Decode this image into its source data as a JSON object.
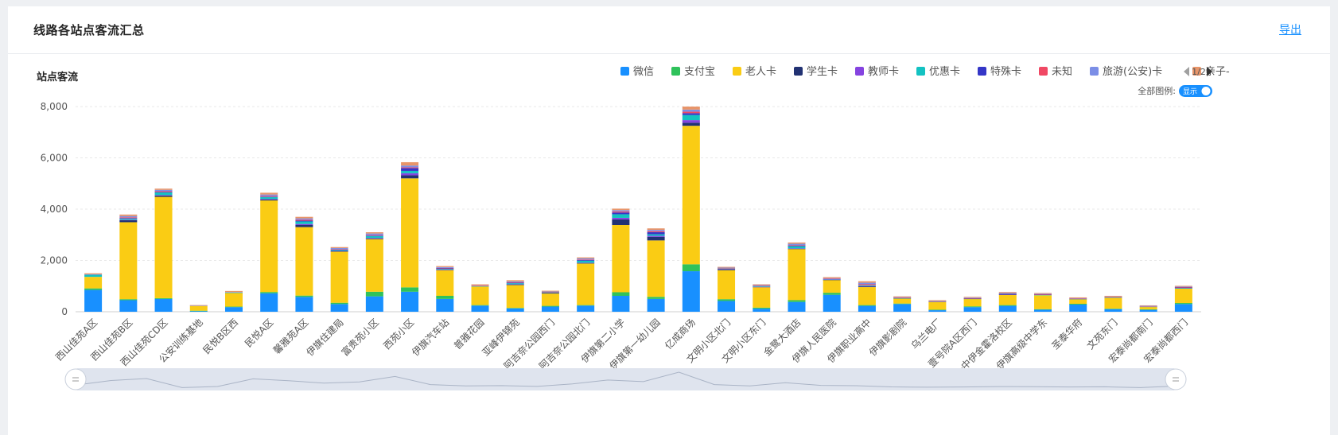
{
  "page": {
    "title": "线路各站点客流汇总",
    "export_label": "导出",
    "chart_title": "站点客流"
  },
  "legend": {
    "items": [
      {
        "name": "微信",
        "color": "#1890ff"
      },
      {
        "name": "支付宝",
        "color": "#2fc25b"
      },
      {
        "name": "老人卡",
        "color": "#facc14"
      },
      {
        "name": "学生卡",
        "color": "#223273"
      },
      {
        "name": "教师卡",
        "color": "#8543e0"
      },
      {
        "name": "优惠卡",
        "color": "#13c2c2"
      },
      {
        "name": "特殊卡",
        "color": "#3436c7"
      },
      {
        "name": "未知",
        "color": "#f04864"
      },
      {
        "name": "旅游(公安)卡",
        "color": "#7b8ee6"
      },
      {
        "name": "亲子-",
        "color": "#e8956a"
      }
    ],
    "page_indicator": "1/2",
    "toggle_label": "全部图例:",
    "toggle_value": "显示"
  },
  "chart_data": {
    "type": "bar",
    "stacked": true,
    "ylim": [
      0,
      8000
    ],
    "yticks": [
      "0",
      "2,000",
      "4,000",
      "6,000",
      "8,000"
    ],
    "grid": true,
    "legend_position": "top-right",
    "categories": [
      "西山佳苑A区",
      "西山佳苑B区",
      "西山佳苑CD区",
      "公安训练基地",
      "民悦B区西",
      "民悦A区",
      "馨雅苑A区",
      "伊旗住建局",
      "富贵苑小区",
      "西苑小区",
      "伊旗汽车站",
      "普雅花园",
      "亚峰伊锦苑",
      "阿吉奈公园西门",
      "阿吉奈公园北门",
      "伊旗第二小学",
      "伊旗第一幼儿园",
      "亿成商场",
      "文明小区北门",
      "文明小区东门",
      "金鹭大酒店",
      "伊旗人民医院",
      "伊旗职业高中",
      "伊旗影剧院",
      "乌兰电厂",
      "壹号院A区西门",
      "市一中伊金霍洛校区",
      "伊旗高级中学东",
      "圣泰华府",
      "文苑东门",
      "宏泰尚都南门",
      "宏泰尚都西门"
    ],
    "series": [
      {
        "name": "微信",
        "values": [
          850,
          450,
          500,
          30,
          180,
          720,
          580,
          300,
          600,
          780,
          500,
          240,
          130,
          200,
          240,
          620,
          500,
          1580,
          420,
          120,
          380,
          660,
          230,
          300,
          60,
          180,
          230,
          80,
          280,
          100,
          80,
          300
        ]
      },
      {
        "name": "支付宝",
        "values": [
          60,
          40,
          30,
          10,
          20,
          50,
          50,
          50,
          180,
          170,
          120,
          20,
          20,
          30,
          20,
          140,
          80,
          270,
          70,
          40,
          70,
          80,
          30,
          20,
          20,
          30,
          30,
          20,
          30,
          20,
          10,
          40
        ]
      },
      {
        "name": "老人卡",
        "values": [
          450,
          3000,
          3950,
          190,
          540,
          3570,
          2670,
          2000,
          2050,
          4250,
          1000,
          720,
          900,
          480,
          1620,
          2620,
          2200,
          5400,
          1130,
          800,
          2000,
          500,
          700,
          200,
          300,
          290,
          400,
          540,
          180,
          430,
          100,
          560
        ]
      },
      {
        "name": "学生卡",
        "values": [
          0,
          80,
          50,
          0,
          0,
          40,
          80,
          10,
          30,
          120,
          20,
          0,
          10,
          30,
          20,
          220,
          140,
          120,
          40,
          0,
          10,
          10,
          30,
          0,
          0,
          0,
          10,
          0,
          0,
          0,
          0,
          0
        ]
      },
      {
        "name": "教师卡",
        "values": [
          0,
          20,
          20,
          0,
          0,
          20,
          40,
          10,
          20,
          80,
          10,
          0,
          10,
          0,
          10,
          60,
          40,
          100,
          10,
          10,
          10,
          10,
          10,
          0,
          0,
          0,
          10,
          0,
          0,
          0,
          0,
          0
        ]
      },
      {
        "name": "优惠卡",
        "values": [
          80,
          40,
          100,
          0,
          10,
          70,
          100,
          40,
          70,
          90,
          30,
          20,
          40,
          20,
          80,
          140,
          60,
          200,
          20,
          30,
          90,
          20,
          30,
          10,
          10,
          10,
          20,
          20,
          10,
          10,
          10,
          20
        ]
      },
      {
        "name": "特殊卡",
        "values": [
          0,
          20,
          20,
          0,
          0,
          20,
          30,
          10,
          20,
          110,
          10,
          0,
          20,
          0,
          30,
          70,
          80,
          70,
          0,
          0,
          10,
          0,
          0,
          10,
          0,
          10,
          10,
          10,
          0,
          0,
          0,
          30
        ]
      },
      {
        "name": "未知",
        "values": [
          0,
          30,
          30,
          0,
          0,
          30,
          40,
          20,
          20,
          30,
          20,
          10,
          20,
          10,
          20,
          40,
          40,
          60,
          10,
          10,
          20,
          10,
          40,
          10,
          10,
          10,
          10,
          10,
          10,
          10,
          10,
          10
        ]
      },
      {
        "name": "旅游(公安)卡",
        "values": [
          20,
          50,
          50,
          10,
          20,
          50,
          50,
          40,
          60,
          70,
          30,
          20,
          30,
          20,
          40,
          50,
          50,
          80,
          20,
          30,
          60,
          20,
          60,
          20,
          20,
          20,
          20,
          20,
          20,
          20,
          20,
          20
        ]
      },
      {
        "name": "亲子-",
        "values": [
          40,
          60,
          50,
          20,
          40,
          70,
          60,
          40,
          50,
          130,
          40,
          40,
          50,
          30,
          40,
          60,
          60,
          120,
          30,
          30,
          50,
          40,
          60,
          30,
          30,
          30,
          30,
          30,
          30,
          30,
          20,
          30
        ]
      }
    ]
  },
  "colors": {
    "grid": "#e8e8e8",
    "slider_fill": "#dfe4ee",
    "slider_line": "#aab4c6",
    "toggle_bg": "#1890ff"
  }
}
